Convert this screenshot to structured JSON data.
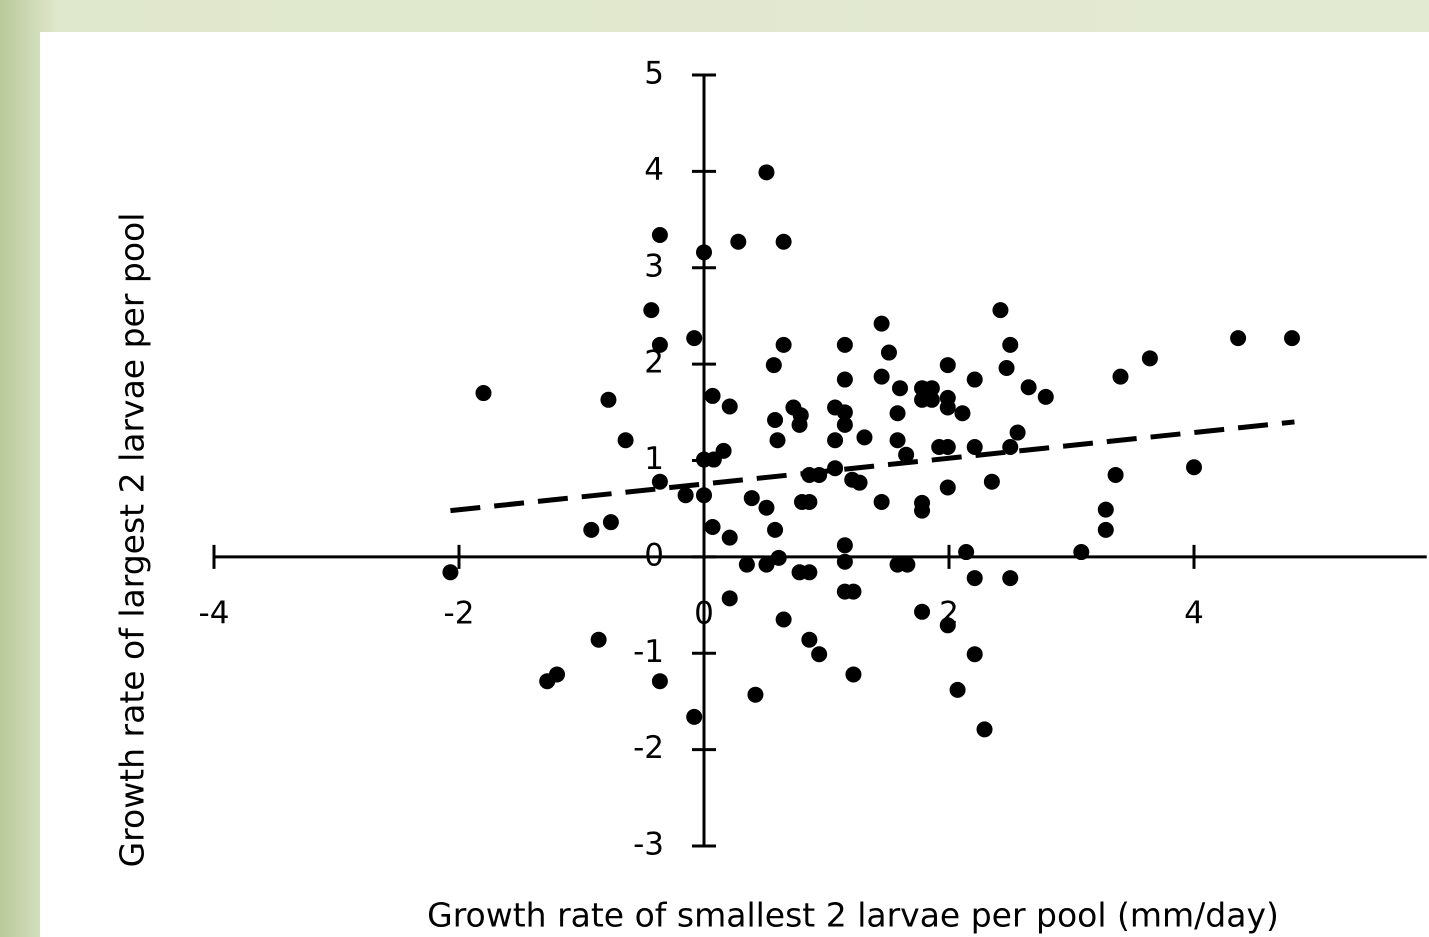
{
  "chart_data": {
    "type": "scatter",
    "x_label": "Growth rate of smallest 2 larvae per pool (mm/day)",
    "y_label": "Growth rate of largest 2 larvae per pool",
    "color": "#000000",
    "xlim": [
      -4,
      5.9
    ],
    "xticks": [
      -4,
      -2,
      0,
      2,
      4
    ],
    "ylim": [
      -3,
      5
    ],
    "yticks": [
      -3,
      -2,
      -1,
      0,
      1,
      2,
      3,
      4,
      5
    ],
    "x": [
      -2.07,
      -1.8,
      -1.28,
      -1.2,
      -0.92,
      -0.86,
      -0.78,
      -0.76,
      -0.64,
      -0.43,
      -0.36,
      -0.36,
      -0.36,
      -0.36,
      -0.15,
      -0.08,
      -0.08,
      0.0,
      0.0,
      0.0,
      0.08,
      0.07,
      0.07,
      0.16,
      0.21,
      0.21,
      0.21,
      0.28,
      0.35,
      0.39,
      0.42,
      0.51,
      0.51,
      0.51,
      0.57,
      0.58,
      0.58,
      0.6,
      0.61,
      0.65,
      0.65,
      0.65,
      0.73,
      0.78,
      0.79,
      0.78,
      0.8,
      0.86,
      0.86,
      0.86,
      0.86,
      0.94,
      0.94,
      1.07,
      1.07,
      1.07,
      1.15,
      1.15,
      1.15,
      1.15,
      1.15,
      1.15,
      1.15,
      1.22,
      1.22,
      1.21,
      1.27,
      1.31,
      1.45,
      1.45,
      1.45,
      1.51,
      1.58,
      1.58,
      1.6,
      1.58,
      1.66,
      1.65,
      1.78,
      1.78,
      1.78,
      1.78,
      1.78,
      1.86,
      1.86,
      1.92,
      1.99,
      1.99,
      1.99,
      1.99,
      1.99,
      1.99,
      2.07,
      2.11,
      2.14,
      2.21,
      2.21,
      2.21,
      2.21,
      2.29,
      2.35,
      2.42,
      2.47,
      2.5,
      2.5,
      2.5,
      2.56,
      2.65,
      2.79,
      3.08,
      3.28,
      3.28,
      3.36,
      3.4,
      3.64,
      4.0,
      4.36,
      4.8
    ],
    "y": [
      -0.16,
      1.7,
      -1.29,
      -1.22,
      0.28,
      -0.86,
      1.63,
      0.36,
      1.21,
      2.56,
      3.34,
      2.2,
      0.78,
      -1.29,
      0.64,
      2.27,
      -1.66,
      3.16,
      0.64,
      1.01,
      1.01,
      1.67,
      0.31,
      1.1,
      1.56,
      0.2,
      -0.43,
      3.27,
      -0.08,
      0.61,
      -1.43,
      3.99,
      0.51,
      -0.08,
      1.99,
      1.42,
      0.28,
      1.21,
      -0.01,
      3.27,
      2.2,
      -0.65,
      1.55,
      1.37,
      1.47,
      -0.16,
      0.57,
      0.57,
      -0.16,
      -0.86,
      0.85,
      0.85,
      -1.01,
      1.55,
      1.21,
      0.92,
      2.2,
      1.84,
      1.5,
      1.37,
      0.12,
      -0.05,
      -0.36,
      -0.36,
      -1.22,
      0.8,
      0.77,
      1.24,
      2.42,
      1.87,
      0.57,
      2.12,
      1.49,
      1.21,
      1.75,
      -0.08,
      -0.08,
      1.06,
      1.75,
      1.63,
      0.56,
      0.48,
      -0.57,
      1.75,
      1.63,
      1.14,
      1.99,
      1.65,
      1.55,
      1.14,
      0.72,
      -0.71,
      -1.38,
      1.49,
      0.05,
      1.84,
      1.14,
      -0.22,
      -1.01,
      -1.79,
      0.78,
      2.56,
      1.96,
      2.2,
      -0.22,
      1.14,
      1.29,
      1.76,
      1.66,
      0.05,
      0.49,
      0.28,
      0.85,
      1.87,
      2.06,
      0.93,
      2.27,
      2.27
    ],
    "trendline": {
      "x": [
        -2.07,
        4.82
      ],
      "y": [
        0.48,
        1.4
      ]
    }
  }
}
